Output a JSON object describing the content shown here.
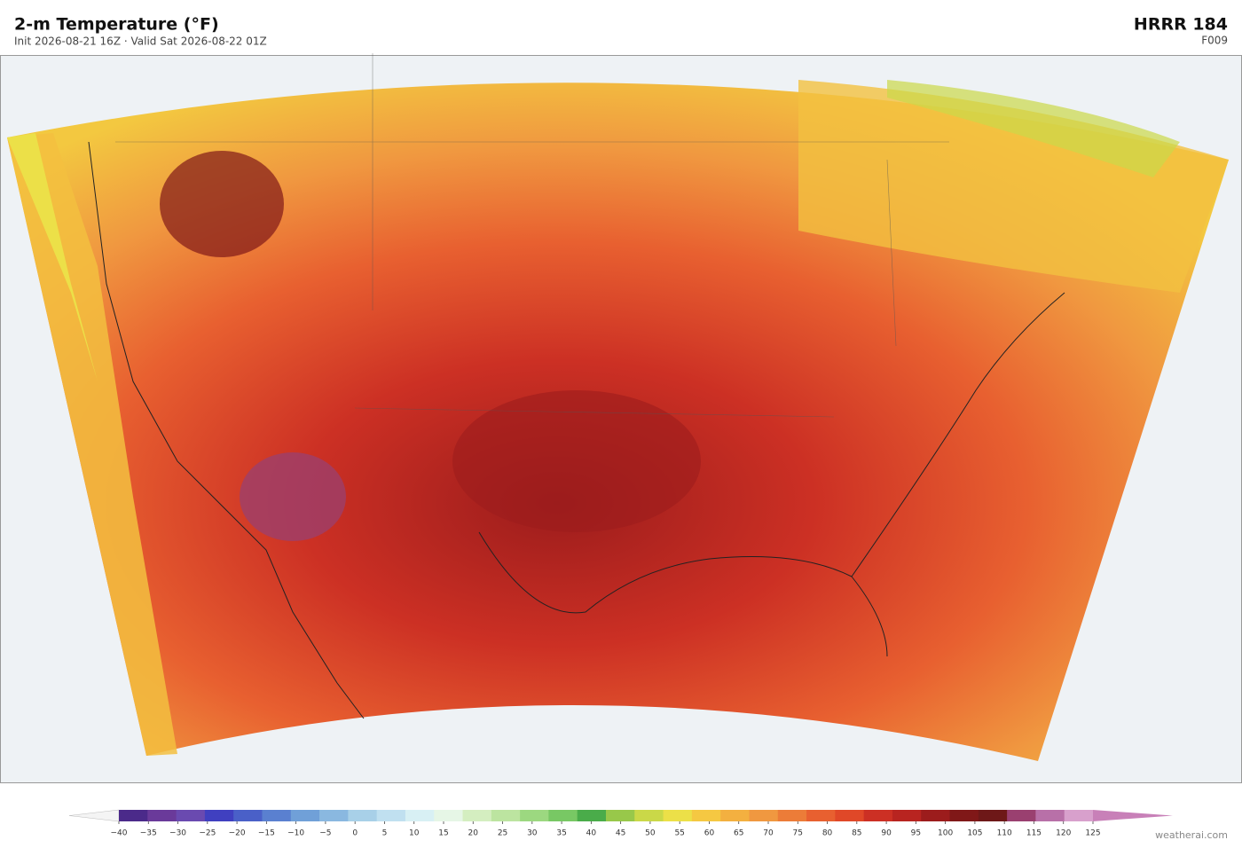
{
  "header": {
    "title": "2-m Temperature  (°F)",
    "subtitle": "Init 2026-08-21 16Z  ·  Valid Sat 2026-08-22 01Z",
    "model": "HRRR  184",
    "forecast_hour": "F009"
  },
  "colorbar": {
    "ticks": [
      {
        "value": -40,
        "label": "−40"
      },
      {
        "value": -35,
        "label": "−35"
      },
      {
        "value": -30,
        "label": "−30"
      },
      {
        "value": -25,
        "label": "−25"
      },
      {
        "value": -20,
        "label": "−20"
      },
      {
        "value": -15,
        "label": "−15"
      },
      {
        "value": -10,
        "label": "−10"
      },
      {
        "value": -5,
        "label": "−5"
      },
      0,
      5,
      10,
      15,
      20,
      25,
      30,
      35,
      40,
      45,
      50,
      55,
      60,
      65,
      70,
      75,
      80,
      85,
      90,
      95,
      100,
      105,
      110,
      115,
      120,
      125
    ],
    "colors": [
      "#4b2a8a",
      "#6a3a9a",
      "#6a4ab0",
      "#4040c0",
      "#4a60c8",
      "#5a80d0",
      "#70a0d8",
      "#8ab8e0",
      "#a8d0e8",
      "#c0e0f0",
      "#d8f0f4",
      "#e6f6e6",
      "#d4eec0",
      "#bce4a0",
      "#9cd880",
      "#78c864",
      "#4aac4a",
      "#98c84a",
      "#cad848",
      "#ece048",
      "#f5c842",
      "#f3b040",
      "#f09840",
      "#ec7c38",
      "#e86030",
      "#e04828",
      "#cc3024",
      "#b82420",
      "#9c1c1c",
      "#801818",
      "#6e1818",
      "#9a4070",
      "#b870a8",
      "#d8a0cc"
    ],
    "under": "#f4f4f4",
    "over": "#c880b8"
  },
  "credit": "weatherai.com"
}
